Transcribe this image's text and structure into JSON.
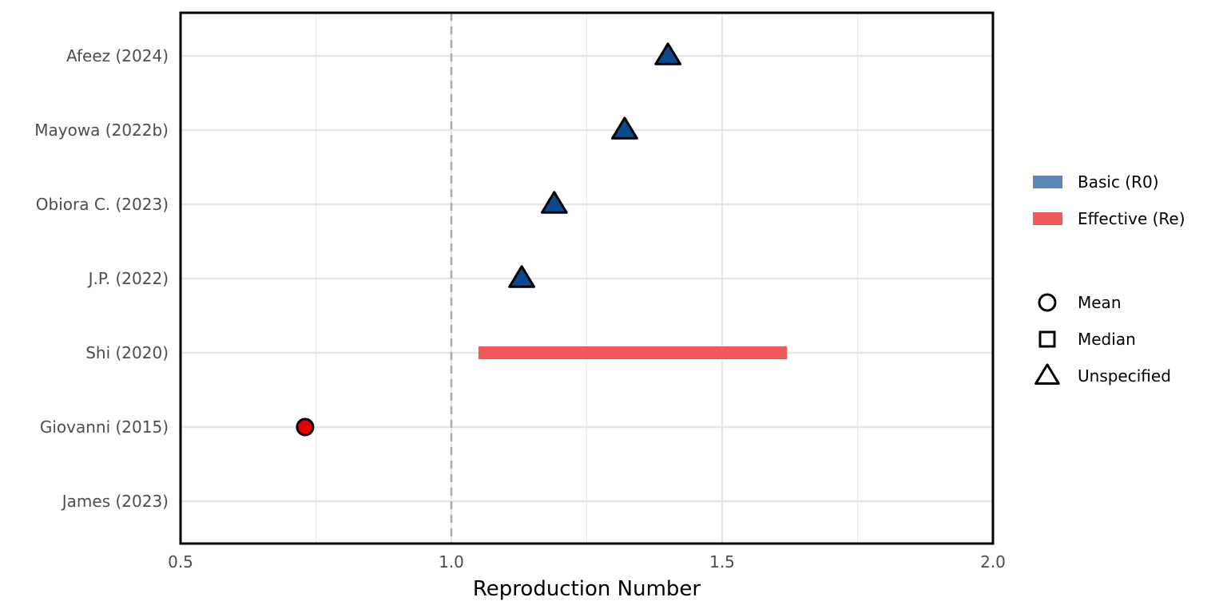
{
  "chart_data": {
    "type": "forest",
    "xlabel": "Reproduction Number",
    "xlim": [
      0.5,
      2.0
    ],
    "xticks": [
      0.5,
      1.0,
      1.5,
      2.0
    ],
    "xtick_labels": [
      "0.5",
      "1.0",
      "1.5",
      "2.0"
    ],
    "reference_line": 1.0,
    "grid": true,
    "studies": [
      "Afeez (2024)",
      "Mayowa (2022b)",
      "Obiora C. (2023)",
      "J.P. (2022)",
      "Shi (2020)",
      "Giovanni (2015)",
      "James (2023)"
    ],
    "points": [
      {
        "study": "Afeez (2024)",
        "value": 1.4,
        "type": "Basic (R0)",
        "measure": "Unspecified"
      },
      {
        "study": "Mayowa (2022b)",
        "value": 1.32,
        "type": "Basic (R0)",
        "measure": "Unspecified"
      },
      {
        "study": "Obiora C. (2023)",
        "value": 1.19,
        "type": "Basic (R0)",
        "measure": "Unspecified"
      },
      {
        "study": "J.P. (2022)",
        "value": 1.13,
        "type": "Basic (R0)",
        "measure": "Unspecified"
      },
      {
        "study": "Giovanni (2015)",
        "value": 0.73,
        "type": "Effective (Re)",
        "measure": "Mean"
      }
    ],
    "ranges": [
      {
        "study": "Shi (2020)",
        "low": 1.05,
        "high": 1.62,
        "type": "Effective (Re)"
      }
    ],
    "legend_placement": "right",
    "legend_types": [
      {
        "label": "Basic (R0)",
        "color": "#5b88b8"
      },
      {
        "label": "Effective (Re)",
        "color": "#f05a5a"
      }
    ],
    "legend_shapes": [
      {
        "label": "Mean",
        "shape": "circle"
      },
      {
        "label": "Median",
        "shape": "square"
      },
      {
        "label": "Unspecified",
        "shape": "triangle"
      }
    ],
    "point_colors": {
      "Basic (R0)": "#0b4a8c",
      "Effective (Re)": "#e60000"
    }
  }
}
